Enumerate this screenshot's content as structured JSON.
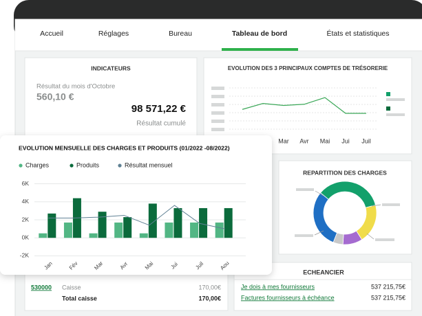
{
  "nav": {
    "tabs": [
      "Accueil",
      "Réglages",
      "Bureau",
      "Tableau de bord",
      "États et statistiques"
    ]
  },
  "indicateurs": {
    "title": "INDICATEURS",
    "month_label": "Résultat du mois d'Octobre",
    "month_value": "560,10 €",
    "cumul_value": "98 571,22 €",
    "cumul_label": "Résultat cumulé"
  },
  "caisse": {
    "account": "530000",
    "label": "Caisse",
    "amount": "170,00€",
    "total_label": "Total caisse",
    "total_amount": "170,00€"
  },
  "echeancier": {
    "title": "ECHEANCIER",
    "rows": [
      {
        "label": "Je dois à mes fournisseurs",
        "amount": "537 215,75€"
      },
      {
        "label": "Factures fournisseurs à échéance",
        "amount": "537 215,75€"
      }
    ]
  },
  "chart_data": [
    {
      "type": "line",
      "title": "EVOLUTION DES 3 PRINCIPAUX COMPTES DE TRÉSORERIE",
      "categories": [
        null,
        null,
        "Mar",
        "Avr",
        "Mai",
        "Jui",
        "Juil"
      ],
      "series": [
        {
          "color": "#3aa757",
          "values": [
            2,
            3.5,
            3,
            3.3,
            5,
            1,
            1
          ]
        }
      ]
    },
    {
      "type": "bar",
      "title": "EVOLUTION MENSUELLE DES CHARGES ET PRODUITS (01/2022 -08/2022)",
      "categories": [
        "Jan",
        "Fév",
        "Mar",
        "Avr",
        "Mai",
        "Jui",
        "Juil",
        "Aou"
      ],
      "series": [
        {
          "name": "Charges",
          "color": "#52b684",
          "values": [
            0.5,
            1.7,
            0.5,
            1.7,
            0.5,
            1.7,
            1.7,
            1.7
          ]
        },
        {
          "name": "Produits",
          "color": "#0b6b3c",
          "values": [
            2.7,
            4.4,
            2.9,
            2.3,
            3.8,
            3.3,
            3.3,
            3.3
          ]
        },
        {
          "name": "Résultat mensuel",
          "type": "line",
          "color": "#5f8194",
          "values": [
            2.2,
            2.2,
            2.3,
            2.5,
            1.4,
            3.6,
            1.6,
            1.0
          ]
        }
      ],
      "ylim": [
        -2.5,
        6.5
      ],
      "yticks": [
        {
          "value": -2,
          "label": "-2K"
        },
        {
          "value": 0,
          "label": "0K"
        },
        {
          "value": 2,
          "label": "2K"
        },
        {
          "value": 4,
          "label": "4K"
        },
        {
          "value": 6,
          "label": "6K"
        }
      ],
      "grid": true
    },
    {
      "type": "pie",
      "title": "REPARTITION DES CHARGES",
      "values": [
        35,
        20,
        10,
        5,
        30
      ],
      "colors": [
        "#13a06b",
        "#f0dc4a",
        "#a56bd0",
        "#c8c8c8",
        "#1f6fc4"
      ]
    }
  ]
}
